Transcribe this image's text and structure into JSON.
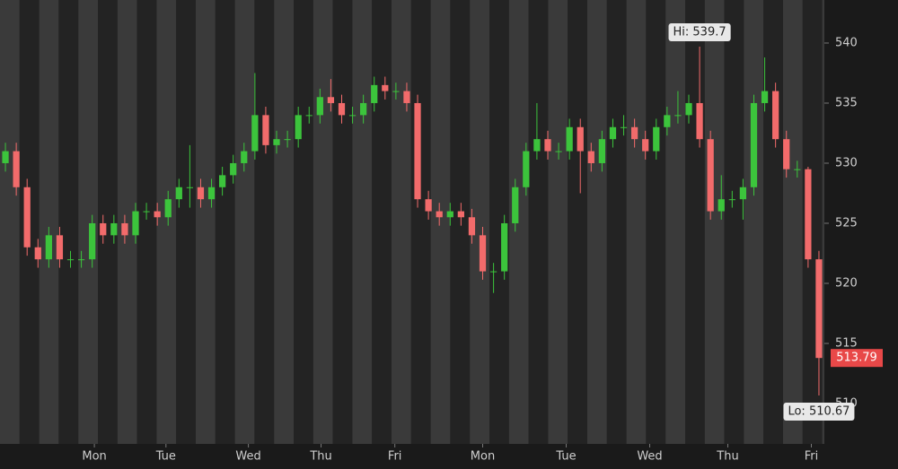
{
  "chart_data": {
    "type": "candlestick",
    "opens": [
      530,
      531,
      528,
      523,
      522,
      524,
      522,
      522,
      522,
      525,
      524,
      525,
      524,
      526,
      526,
      525.5,
      527,
      528,
      528,
      527,
      528,
      529,
      530,
      531,
      534,
      531.5,
      532,
      532,
      534,
      534,
      535.5,
      535,
      534,
      534,
      535,
      536.5,
      536,
      536,
      535,
      527,
      526,
      525.5,
      526,
      525.5,
      524,
      521,
      521,
      525,
      528,
      531,
      532,
      531,
      531,
      533,
      531,
      530,
      532,
      533,
      533,
      532,
      531,
      533,
      534,
      534,
      535,
      532,
      526,
      527,
      527,
      528,
      535,
      536,
      532,
      529.5,
      529.5,
      522
    ],
    "highs": [
      531.7,
      531.7,
      528.7,
      523.7,
      524.7,
      524.7,
      522.7,
      522.7,
      525.7,
      525.7,
      525.7,
      525.7,
      526.7,
      526.7,
      526.7,
      527.7,
      528.7,
      531.5,
      528.7,
      528.7,
      529.7,
      530.7,
      531.7,
      537.5,
      534.7,
      532.7,
      532.7,
      534.7,
      534.7,
      536.2,
      537,
      535.7,
      534.7,
      535.7,
      537.2,
      537.2,
      536.7,
      536.7,
      535.7,
      527.7,
      526.7,
      526.7,
      526.7,
      526.2,
      524.7,
      521.7,
      525.7,
      528.7,
      531.7,
      535,
      532.7,
      531.7,
      533.7,
      533.7,
      531.7,
      532.7,
      533.7,
      534,
      533.7,
      532.7,
      533.7,
      534.7,
      536,
      535.7,
      539.7,
      532.7,
      529,
      527.7,
      528.7,
      535.7,
      538.8,
      536.7,
      532.7,
      530.2,
      529.7,
      522.7
    ],
    "lows": [
      529.3,
      527.3,
      522.3,
      521.3,
      521.3,
      521.3,
      521.3,
      521.3,
      521.3,
      523.3,
      523.3,
      523.3,
      523.3,
      525.3,
      524.8,
      524.8,
      526.3,
      526.3,
      526.3,
      526.3,
      527.3,
      528.3,
      529.3,
      530.3,
      530.8,
      530.8,
      531.3,
      531.3,
      533.3,
      533.3,
      534.3,
      533.3,
      533.3,
      533.3,
      534.3,
      535.3,
      535.3,
      534.3,
      526.3,
      525.3,
      524.8,
      524.8,
      524.8,
      523.3,
      520.3,
      519.2,
      520.3,
      524.3,
      527.3,
      530.3,
      530.3,
      530.3,
      530.3,
      527.5,
      529.3,
      529.3,
      531.3,
      532.3,
      531.3,
      530.3,
      530.3,
      532.3,
      533.3,
      533.3,
      531.3,
      525.3,
      525.3,
      526.3,
      525.3,
      527.3,
      534.3,
      531.3,
      528.8,
      528.8,
      521.3,
      510.67
    ],
    "closes": [
      531,
      528,
      523,
      522,
      524,
      522,
      522,
      522,
      525,
      524,
      525,
      524,
      526,
      526,
      525.5,
      527,
      528,
      528,
      527,
      528,
      529,
      530,
      531,
      534,
      531.5,
      532,
      532,
      534,
      534,
      535.5,
      535,
      534,
      534,
      535,
      536.5,
      536,
      536,
      535,
      527,
      526,
      525.5,
      526,
      525.5,
      524,
      521,
      521,
      525,
      528,
      531,
      532,
      531,
      531,
      533,
      531,
      530,
      532,
      533,
      533,
      532,
      531,
      533,
      534,
      534,
      535,
      532,
      526,
      527,
      527,
      528,
      535,
      536,
      532,
      529.5,
      529.5,
      522,
      513.79
    ],
    "up_color": "#3cc43c",
    "down_color": "#f26b6b",
    "xlim": [
      -0.5,
      75.5
    ],
    "xticks": [
      {
        "value": 8.2,
        "label": "Mon"
      },
      {
        "value": 14.8,
        "label": "Tue"
      },
      {
        "value": 22.4,
        "label": "Wed"
      },
      {
        "value": 29.1,
        "label": "Thu"
      },
      {
        "value": 35.9,
        "label": "Fri"
      },
      {
        "value": 44,
        "label": "Mon"
      },
      {
        "value": 51.7,
        "label": "Tue"
      },
      {
        "value": 59.4,
        "label": "Wed"
      },
      {
        "value": 66.6,
        "label": "Thu"
      },
      {
        "value": 74.3,
        "label": "Fri"
      }
    ],
    "ylim": [
      506.64,
      543.58
    ],
    "yticks": [
      510,
      515,
      520,
      525,
      530,
      535,
      540
    ],
    "grid": false,
    "hi_label": "Hi: 539.7",
    "hi_index": 64,
    "lo_label": "Lo: 510.67",
    "lo_index": 75,
    "last_price": 513.79
  }
}
